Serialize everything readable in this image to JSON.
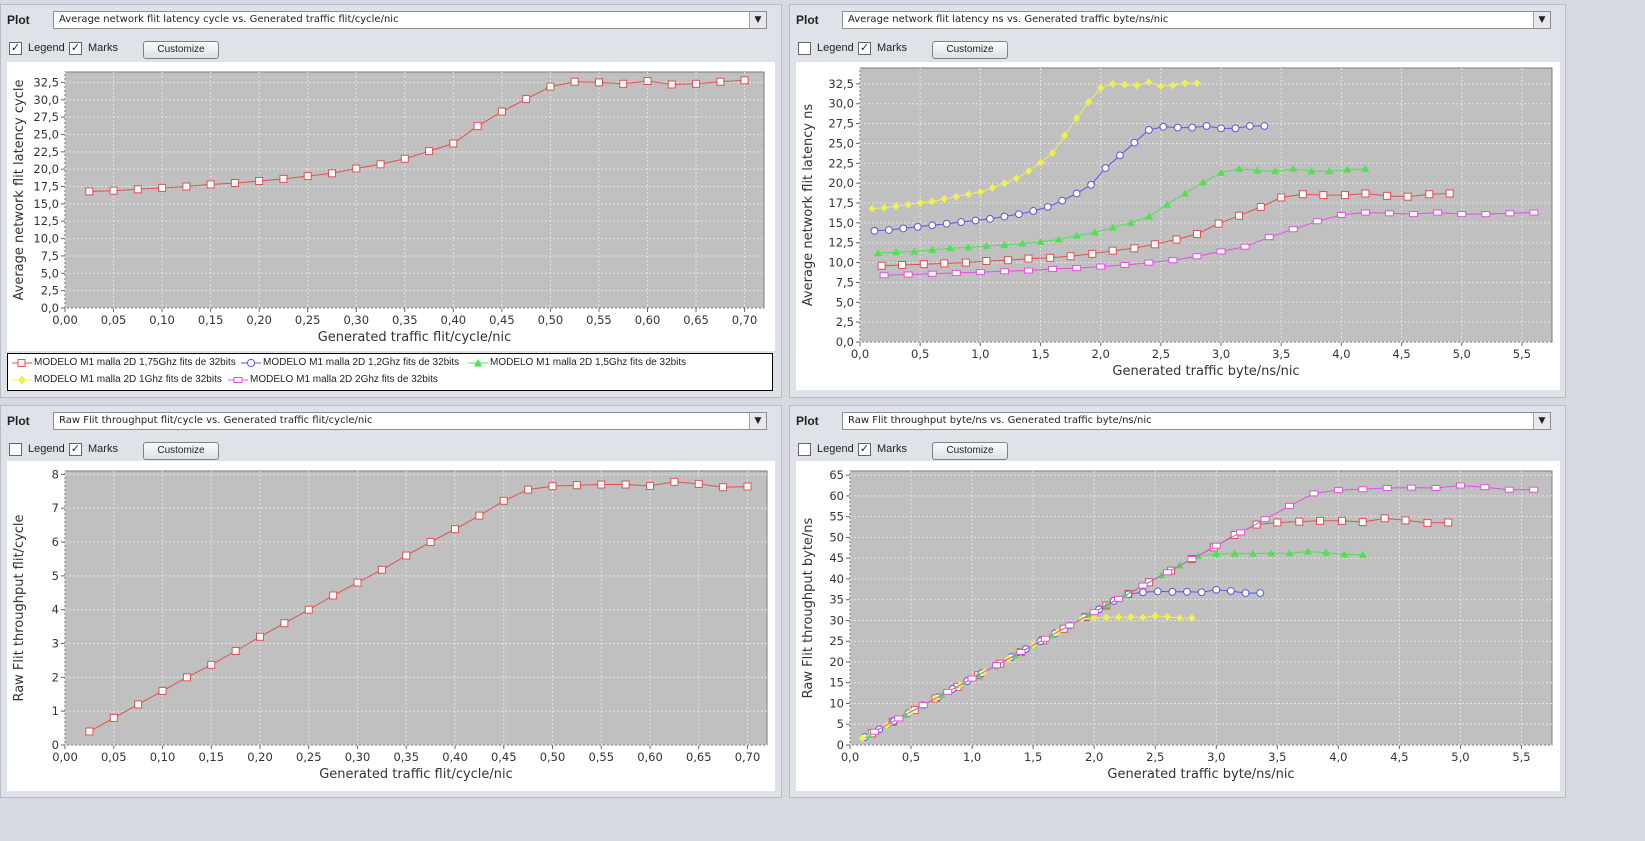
{
  "plot_label": "Plot",
  "legend_label": "Legend",
  "marks_label": "Marks",
  "customize_label": "Customize",
  "series_meta": [
    {
      "name": "MODELO M1 malla 2D 1,75Ghz fits de 32bits",
      "color": "#e05050",
      "marker": "square"
    },
    {
      "name": "MODELO M1 malla 2D 1,2Ghz fits de 32bits",
      "color": "#5858e0",
      "marker": "circle"
    },
    {
      "name": "MODELO M1 malla 2D 1,5Ghz fits de 32bits",
      "color": "#50e050",
      "marker": "triangle"
    },
    {
      "name": "MODELO M1 malla 2D 1Ghz fits de 32bits",
      "color": "#f0f050",
      "marker": "diamond"
    },
    {
      "name": "MODELO M1 malla 2D 2Ghz fits de 32bits",
      "color": "#e050e0",
      "marker": "rect"
    }
  ],
  "panels": [
    {
      "selector": "Average network flit latency cycle vs. Generated traffic flit/cycle/nic",
      "legend_checked": true,
      "marks_checked": true
    },
    {
      "selector": "Average network flit latency ns vs. Generated traffic byte/ns/nic",
      "legend_checked": false,
      "marks_checked": true
    },
    {
      "selector": "Raw Flit throughput flit/cycle vs. Generated traffic flit/cycle/nic",
      "legend_checked": false,
      "marks_checked": true
    },
    {
      "selector": "Raw Flit throughput byte/ns vs. Generated traffic byte/ns/nic",
      "legend_checked": false,
      "marks_checked": true
    }
  ],
  "chart_data": [
    {
      "type": "line",
      "xlabel": "Generated traffic flit/cycle/nic",
      "ylabel": "Average network flit latency cycle",
      "xlim": [
        0,
        0.72
      ],
      "ylim": [
        0,
        34
      ],
      "xticks": [
        "0,00",
        "0,05",
        "0,10",
        "0,15",
        "0,20",
        "0,25",
        "0,30",
        "0,35",
        "0,40",
        "0,45",
        "0,50",
        "0,55",
        "0,60",
        "0,65",
        "0,70"
      ],
      "yticks": [
        "0,0",
        "2,5",
        "5,0",
        "7,5",
        "10,0",
        "12,5",
        "15,0",
        "17,5",
        "20,0",
        "22,5",
        "25,0",
        "27,5",
        "30,0",
        "32,5"
      ],
      "grid": true,
      "series": [
        {
          "name": "MODELO M1 malla 2D 1,75Ghz fits de 32bits",
          "x": [
            0.025,
            0.05,
            0.075,
            0.1,
            0.125,
            0.15,
            0.175,
            0.2,
            0.225,
            0.25,
            0.275,
            0.3,
            0.325,
            0.35,
            0.375,
            0.4,
            0.425,
            0.45,
            0.475,
            0.5,
            0.525,
            0.55,
            0.575,
            0.6,
            0.625,
            0.65,
            0.675,
            0.7
          ],
          "y": [
            16.8,
            16.9,
            17.1,
            17.3,
            17.5,
            17.8,
            18.0,
            18.3,
            18.6,
            19.0,
            19.4,
            20.1,
            20.7,
            21.5,
            22.6,
            23.7,
            26.2,
            28.3,
            30.1,
            31.9,
            32.6,
            32.5,
            32.3,
            32.7,
            32.2,
            32.3,
            32.6,
            32.8
          ]
        }
      ]
    },
    {
      "type": "line",
      "xlabel": "Generated traffic byte/ns/nic",
      "ylabel": "Average network flit latency ns",
      "xlim": [
        0,
        5.75
      ],
      "ylim": [
        0,
        34.5
      ],
      "xticks": [
        "0,0",
        "0,5",
        "1,0",
        "1,5",
        "2,0",
        "2,5",
        "3,0",
        "3,5",
        "4,0",
        "4,5",
        "5,0",
        "5,5"
      ],
      "yticks": [
        "0,0",
        "2,5",
        "5,0",
        "7,5",
        "10,0",
        "12,5",
        "15,0",
        "17,5",
        "20,0",
        "22,5",
        "25,0",
        "27,5",
        "30,0",
        "32,5"
      ],
      "grid": true,
      "series": [
        {
          "name": "MODELO M1 malla 2D 1,75Ghz fits de 32bits",
          "x": [
            0.18,
            0.35,
            0.53,
            0.7,
            0.88,
            1.05,
            1.23,
            1.4,
            1.58,
            1.75,
            1.93,
            2.1,
            2.28,
            2.45,
            2.63,
            2.8,
            2.98,
            3.15,
            3.33,
            3.5,
            3.68,
            3.85,
            4.03,
            4.2,
            4.38,
            4.55,
            4.73,
            4.9
          ],
          "y": [
            9.6,
            9.7,
            9.8,
            9.9,
            10.0,
            10.2,
            10.3,
            10.5,
            10.6,
            10.8,
            11.1,
            11.5,
            11.8,
            12.3,
            12.9,
            13.6,
            14.9,
            15.9,
            17.0,
            18.2,
            18.6,
            18.5,
            18.5,
            18.7,
            18.4,
            18.3,
            18.6,
            18.7
          ]
        },
        {
          "name": "MODELO M1 malla 2D 1,2Ghz fits de 32bits",
          "x": [
            0.12,
            0.24,
            0.36,
            0.48,
            0.6,
            0.72,
            0.84,
            0.96,
            1.08,
            1.2,
            1.32,
            1.44,
            1.56,
            1.68,
            1.8,
            1.92,
            2.04,
            2.16,
            2.28,
            2.4,
            2.52,
            2.64,
            2.76,
            2.88,
            3.0,
            3.12,
            3.24,
            3.36
          ],
          "y": [
            14.0,
            14.1,
            14.3,
            14.5,
            14.7,
            14.9,
            15.1,
            15.3,
            15.5,
            15.8,
            16.1,
            16.5,
            17.0,
            17.8,
            18.7,
            19.8,
            21.9,
            23.5,
            25.1,
            26.7,
            27.1,
            27.0,
            27.0,
            27.2,
            26.9,
            26.9,
            27.2,
            27.2
          ]
        },
        {
          "name": "MODELO M1 malla 2D 1,5Ghz fits de 32bits",
          "x": [
            0.15,
            0.3,
            0.45,
            0.6,
            0.75,
            0.9,
            1.05,
            1.2,
            1.35,
            1.5,
            1.65,
            1.8,
            1.95,
            2.1,
            2.25,
            2.4,
            2.55,
            2.7,
            2.85,
            3.0,
            3.15,
            3.3,
            3.45,
            3.6,
            3.75,
            3.9,
            4.05,
            4.2
          ],
          "y": [
            11.2,
            11.3,
            11.4,
            11.6,
            11.8,
            11.9,
            12.1,
            12.2,
            12.4,
            12.6,
            12.9,
            13.4,
            13.8,
            14.4,
            15.0,
            15.8,
            17.3,
            18.7,
            20.1,
            21.3,
            21.8,
            21.6,
            21.5,
            21.8,
            21.5,
            21.5,
            21.7,
            21.8
          ]
        },
        {
          "name": "MODELO M1 malla 2D 1Ghz fits de 32bits",
          "x": [
            0.1,
            0.2,
            0.3,
            0.4,
            0.5,
            0.6,
            0.7,
            0.8,
            0.9,
            1.0,
            1.1,
            1.2,
            1.3,
            1.4,
            1.5,
            1.6,
            1.7,
            1.8,
            1.9,
            2.0,
            2.1,
            2.2,
            2.3,
            2.4,
            2.5,
            2.6,
            2.7,
            2.8
          ],
          "y": [
            16.8,
            16.9,
            17.1,
            17.3,
            17.5,
            17.7,
            18.0,
            18.3,
            18.6,
            18.9,
            19.4,
            20.0,
            20.6,
            21.5,
            22.6,
            23.8,
            26.0,
            28.2,
            30.2,
            32.0,
            32.5,
            32.4,
            32.3,
            32.7,
            32.2,
            32.3,
            32.6,
            32.6
          ]
        },
        {
          "name": "MODELO M1 malla 2D 2Ghz fits de 32bits",
          "x": [
            0.2,
            0.4,
            0.6,
            0.8,
            1.0,
            1.2,
            1.4,
            1.6,
            1.8,
            2.0,
            2.2,
            2.4,
            2.6,
            2.8,
            3.0,
            3.2,
            3.4,
            3.6,
            3.8,
            4.0,
            4.2,
            4.4,
            4.6,
            4.8,
            5.0,
            5.2,
            5.4,
            5.6
          ],
          "y": [
            8.4,
            8.5,
            8.6,
            8.7,
            8.8,
            8.9,
            9.0,
            9.2,
            9.3,
            9.5,
            9.7,
            10.0,
            10.3,
            10.8,
            11.4,
            12.0,
            13.2,
            14.2,
            15.2,
            16.0,
            16.3,
            16.2,
            16.1,
            16.3,
            16.1,
            16.1,
            16.2,
            16.3
          ]
        }
      ]
    },
    {
      "type": "line",
      "xlabel": "Generated traffic flit/cycle/nic",
      "ylabel": "Raw Flit throughput flit/cycle",
      "xlim": [
        0,
        0.72
      ],
      "ylim": [
        0,
        8.1
      ],
      "xticks": [
        "0,00",
        "0,05",
        "0,10",
        "0,15",
        "0,20",
        "0,25",
        "0,30",
        "0,35",
        "0,40",
        "0,45",
        "0,50",
        "0,55",
        "0,60",
        "0,65",
        "0,70"
      ],
      "yticks": [
        "0",
        "1",
        "2",
        "3",
        "4",
        "5",
        "6",
        "7",
        "8"
      ],
      "grid": true,
      "series": [
        {
          "name": "MODELO M1 malla 2D 1,75Ghz fits de 32bits",
          "x": [
            0.025,
            0.05,
            0.075,
            0.1,
            0.125,
            0.15,
            0.175,
            0.2,
            0.225,
            0.25,
            0.275,
            0.3,
            0.325,
            0.35,
            0.375,
            0.4,
            0.425,
            0.45,
            0.475,
            0.5,
            0.525,
            0.55,
            0.575,
            0.6,
            0.625,
            0.65,
            0.675,
            0.7
          ],
          "y": [
            0.4,
            0.8,
            1.2,
            1.6,
            2.0,
            2.37,
            2.78,
            3.2,
            3.6,
            4.0,
            4.42,
            4.8,
            5.18,
            5.6,
            6.0,
            6.38,
            6.78,
            7.22,
            7.55,
            7.65,
            7.68,
            7.7,
            7.7,
            7.66,
            7.78,
            7.72,
            7.62,
            7.64
          ]
        }
      ]
    },
    {
      "type": "line",
      "xlabel": "Generated traffic byte/ns/nic",
      "ylabel": "Raw Flit throughput byte/ns",
      "xlim": [
        0,
        5.75
      ],
      "ylim": [
        0,
        66
      ],
      "xticks": [
        "0,0",
        "0,5",
        "1,0",
        "1,5",
        "2,0",
        "2,5",
        "3,0",
        "3,5",
        "4,0",
        "4,5",
        "5,0",
        "5,5"
      ],
      "yticks": [
        "0",
        "5",
        "10",
        "15",
        "20",
        "25",
        "30",
        "35",
        "40",
        "45",
        "50",
        "55",
        "60",
        "65"
      ],
      "grid": true,
      "series": [
        {
          "name": "MODELO M1 malla 2D 1,75Ghz fits de 32bits",
          "x": [
            0.18,
            0.35,
            0.53,
            0.7,
            0.88,
            1.05,
            1.23,
            1.4,
            1.58,
            1.75,
            1.93,
            2.1,
            2.28,
            2.45,
            2.63,
            2.8,
            2.98,
            3.15,
            3.33,
            3.5,
            3.68,
            3.85,
            4.03,
            4.2,
            4.38,
            4.55,
            4.73,
            4.9
          ],
          "y": [
            2.8,
            5.6,
            8.4,
            11.2,
            14.0,
            16.8,
            19.6,
            22.4,
            25.2,
            28.0,
            30.8,
            33.6,
            36.4,
            39.2,
            42.0,
            44.8,
            47.6,
            50.6,
            53.1,
            53.6,
            53.8,
            54.0,
            54.0,
            53.7,
            54.6,
            54.1,
            53.5,
            53.6
          ]
        },
        {
          "name": "MODELO M1 malla 2D 1,2Ghz fits de 32bits",
          "x": [
            0.12,
            0.24,
            0.36,
            0.48,
            0.6,
            0.72,
            0.84,
            0.96,
            1.08,
            1.2,
            1.32,
            1.44,
            1.56,
            1.68,
            1.8,
            1.92,
            2.04,
            2.16,
            2.28,
            2.4,
            2.52,
            2.64,
            2.76,
            2.88,
            3.0,
            3.12,
            3.24,
            3.36
          ],
          "y": [
            1.9,
            3.8,
            5.8,
            7.7,
            9.6,
            11.5,
            13.5,
            15.4,
            17.3,
            19.2,
            21.2,
            23.1,
            25.0,
            26.9,
            28.8,
            30.8,
            32.7,
            34.7,
            36.3,
            36.8,
            37.0,
            36.9,
            36.9,
            36.8,
            37.4,
            37.1,
            36.6,
            36.6
          ]
        },
        {
          "name": "MODELO M1 malla 2D 1,5Ghz fits de 32bits",
          "x": [
            0.15,
            0.3,
            0.45,
            0.6,
            0.75,
            0.9,
            1.05,
            1.2,
            1.35,
            1.5,
            1.65,
            1.8,
            1.95,
            2.1,
            2.25,
            2.4,
            2.55,
            2.7,
            2.85,
            3.0,
            3.15,
            3.3,
            3.45,
            3.6,
            3.75,
            3.9,
            4.05,
            4.2
          ],
          "y": [
            2.4,
            4.8,
            7.2,
            9.6,
            12.0,
            14.4,
            16.8,
            19.2,
            21.6,
            24.0,
            26.4,
            28.8,
            31.2,
            33.6,
            36.0,
            38.4,
            40.8,
            43.2,
            45.5,
            46.0,
            46.1,
            46.1,
            46.2,
            46.2,
            46.6,
            46.3,
            45.9,
            45.8
          ]
        },
        {
          "name": "MODELO M1 malla 2D 1Ghz fits de 32bits",
          "x": [
            0.1,
            0.2,
            0.3,
            0.4,
            0.5,
            0.6,
            0.7,
            0.8,
            0.9,
            1.0,
            1.1,
            1.2,
            1.3,
            1.4,
            1.5,
            1.6,
            1.7,
            1.8,
            1.9,
            2.0,
            2.1,
            2.2,
            2.3,
            2.4,
            2.5,
            2.6,
            2.7,
            2.8
          ],
          "y": [
            1.6,
            3.2,
            4.8,
            6.4,
            8.0,
            9.6,
            11.2,
            12.8,
            14.4,
            16.0,
            17.6,
            19.2,
            20.8,
            22.4,
            24.0,
            25.6,
            27.2,
            28.8,
            30.4,
            30.6,
            30.7,
            30.8,
            30.8,
            30.7,
            31.1,
            30.9,
            30.6,
            30.6
          ]
        },
        {
          "name": "MODELO M1 malla 2D 2Ghz fits de 32bits",
          "x": [
            0.2,
            0.4,
            0.6,
            0.8,
            1.0,
            1.2,
            1.4,
            1.6,
            1.8,
            2.0,
            2.2,
            2.4,
            2.6,
            2.8,
            3.0,
            3.2,
            3.4,
            3.6,
            3.8,
            4.0,
            4.2,
            4.4,
            4.6,
            4.8,
            5.0,
            5.2,
            5.4,
            5.6
          ],
          "y": [
            3.2,
            6.4,
            9.6,
            12.8,
            16.0,
            19.2,
            22.4,
            25.6,
            28.8,
            32.0,
            35.2,
            38.4,
            41.6,
            44.8,
            48.0,
            51.2,
            54.4,
            57.6,
            60.6,
            61.4,
            61.6,
            61.9,
            62.0,
            61.9,
            62.5,
            62.1,
            61.5,
            61.5
          ]
        }
      ]
    }
  ]
}
